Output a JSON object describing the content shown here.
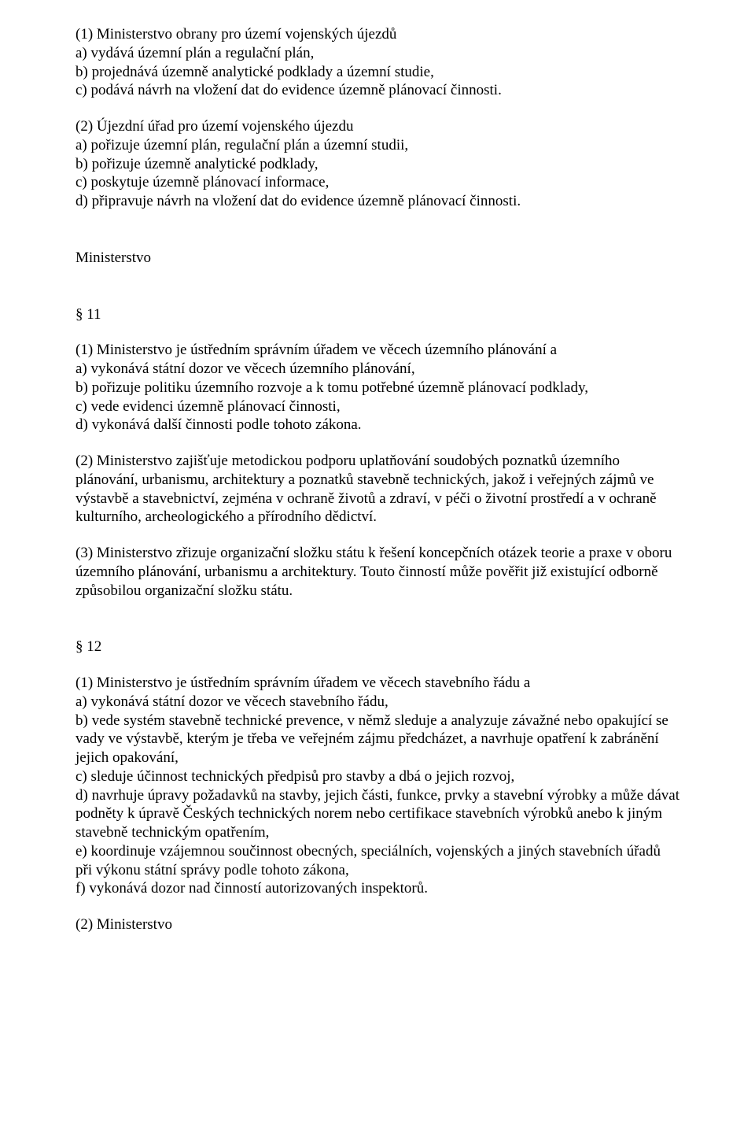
{
  "p1": "(1) Ministerstvo obrany pro území vojenských újezdů\na) vydává územní plán a regulační plán,\nb) projednává územně analytické podklady a územní studie,\nc) podává návrh na vložení dat do evidence územně plánovací činnosti.",
  "p2": "(2) Újezdní úřad pro území vojenského újezdu\na) pořizuje územní plán, regulační plán a územní studii,\nb) pořizuje územně analytické podklady,\nc) poskytuje územně plánovací informace,\nd) připravuje návrh na vložení dat do evidence územně plánovací činnosti.",
  "title_ministerstvo": "Ministerstvo",
  "s11": "§ 11",
  "p11_1": "(1) Ministerstvo je ústředním správním úřadem ve věcech územního plánování a\na) vykonává státní dozor ve věcech územního plánování,\nb) pořizuje politiku územního rozvoje a k tomu potřebné územně plánovací podklady,\nc) vede evidenci územně plánovací činnosti,\nd) vykonává další činnosti podle tohoto zákona.",
  "p11_2": "(2) Ministerstvo zajišťuje metodickou podporu uplatňování soudobých poznatků územního plánování, urbanismu, architektury a poznatků stavebně technických, jakož i veřejných zájmů ve výstavbě a stavebnictví, zejména v ochraně životů a zdraví, v péči o životní prostředí a v ochraně kulturního, archeologického a přírodního dědictví.",
  "p11_3": "(3) Ministerstvo zřizuje organizační složku státu k řešení koncepčních otázek teorie a praxe v oboru územního plánování, urbanismu a architektury. Touto činností může pověřit již existující odborně způsobilou organizační složku státu.",
  "s12": "§ 12",
  "p12_1": "(1) Ministerstvo je ústředním správním úřadem ve věcech stavebního řádu a\na) vykonává státní dozor ve věcech stavebního řádu,\nb) vede systém stavebně technické prevence, v němž sleduje a analyzuje závažné nebo opakující se vady ve výstavbě, kterým je třeba ve veřejném zájmu předcházet, a navrhuje opatření k zabránění jejich opakování,\nc) sleduje účinnost technických předpisů pro stavby a dbá o jejich rozvoj,\nd) navrhuje úpravy požadavků na stavby, jejich části, funkce, prvky a stavební výrobky a může dávat podněty k úpravě Českých technických norem nebo certifikace stavebních výrobků anebo k jiným stavebně technickým opatřením,\ne) koordinuje vzájemnou součinnost obecných, speciálních, vojenských a jiných stavebních úřadů při výkonu státní správy podle tohoto zákona,\nf) vykonává dozor nad činností autorizovaných inspektorů.",
  "p12_2": "(2) Ministerstvo"
}
